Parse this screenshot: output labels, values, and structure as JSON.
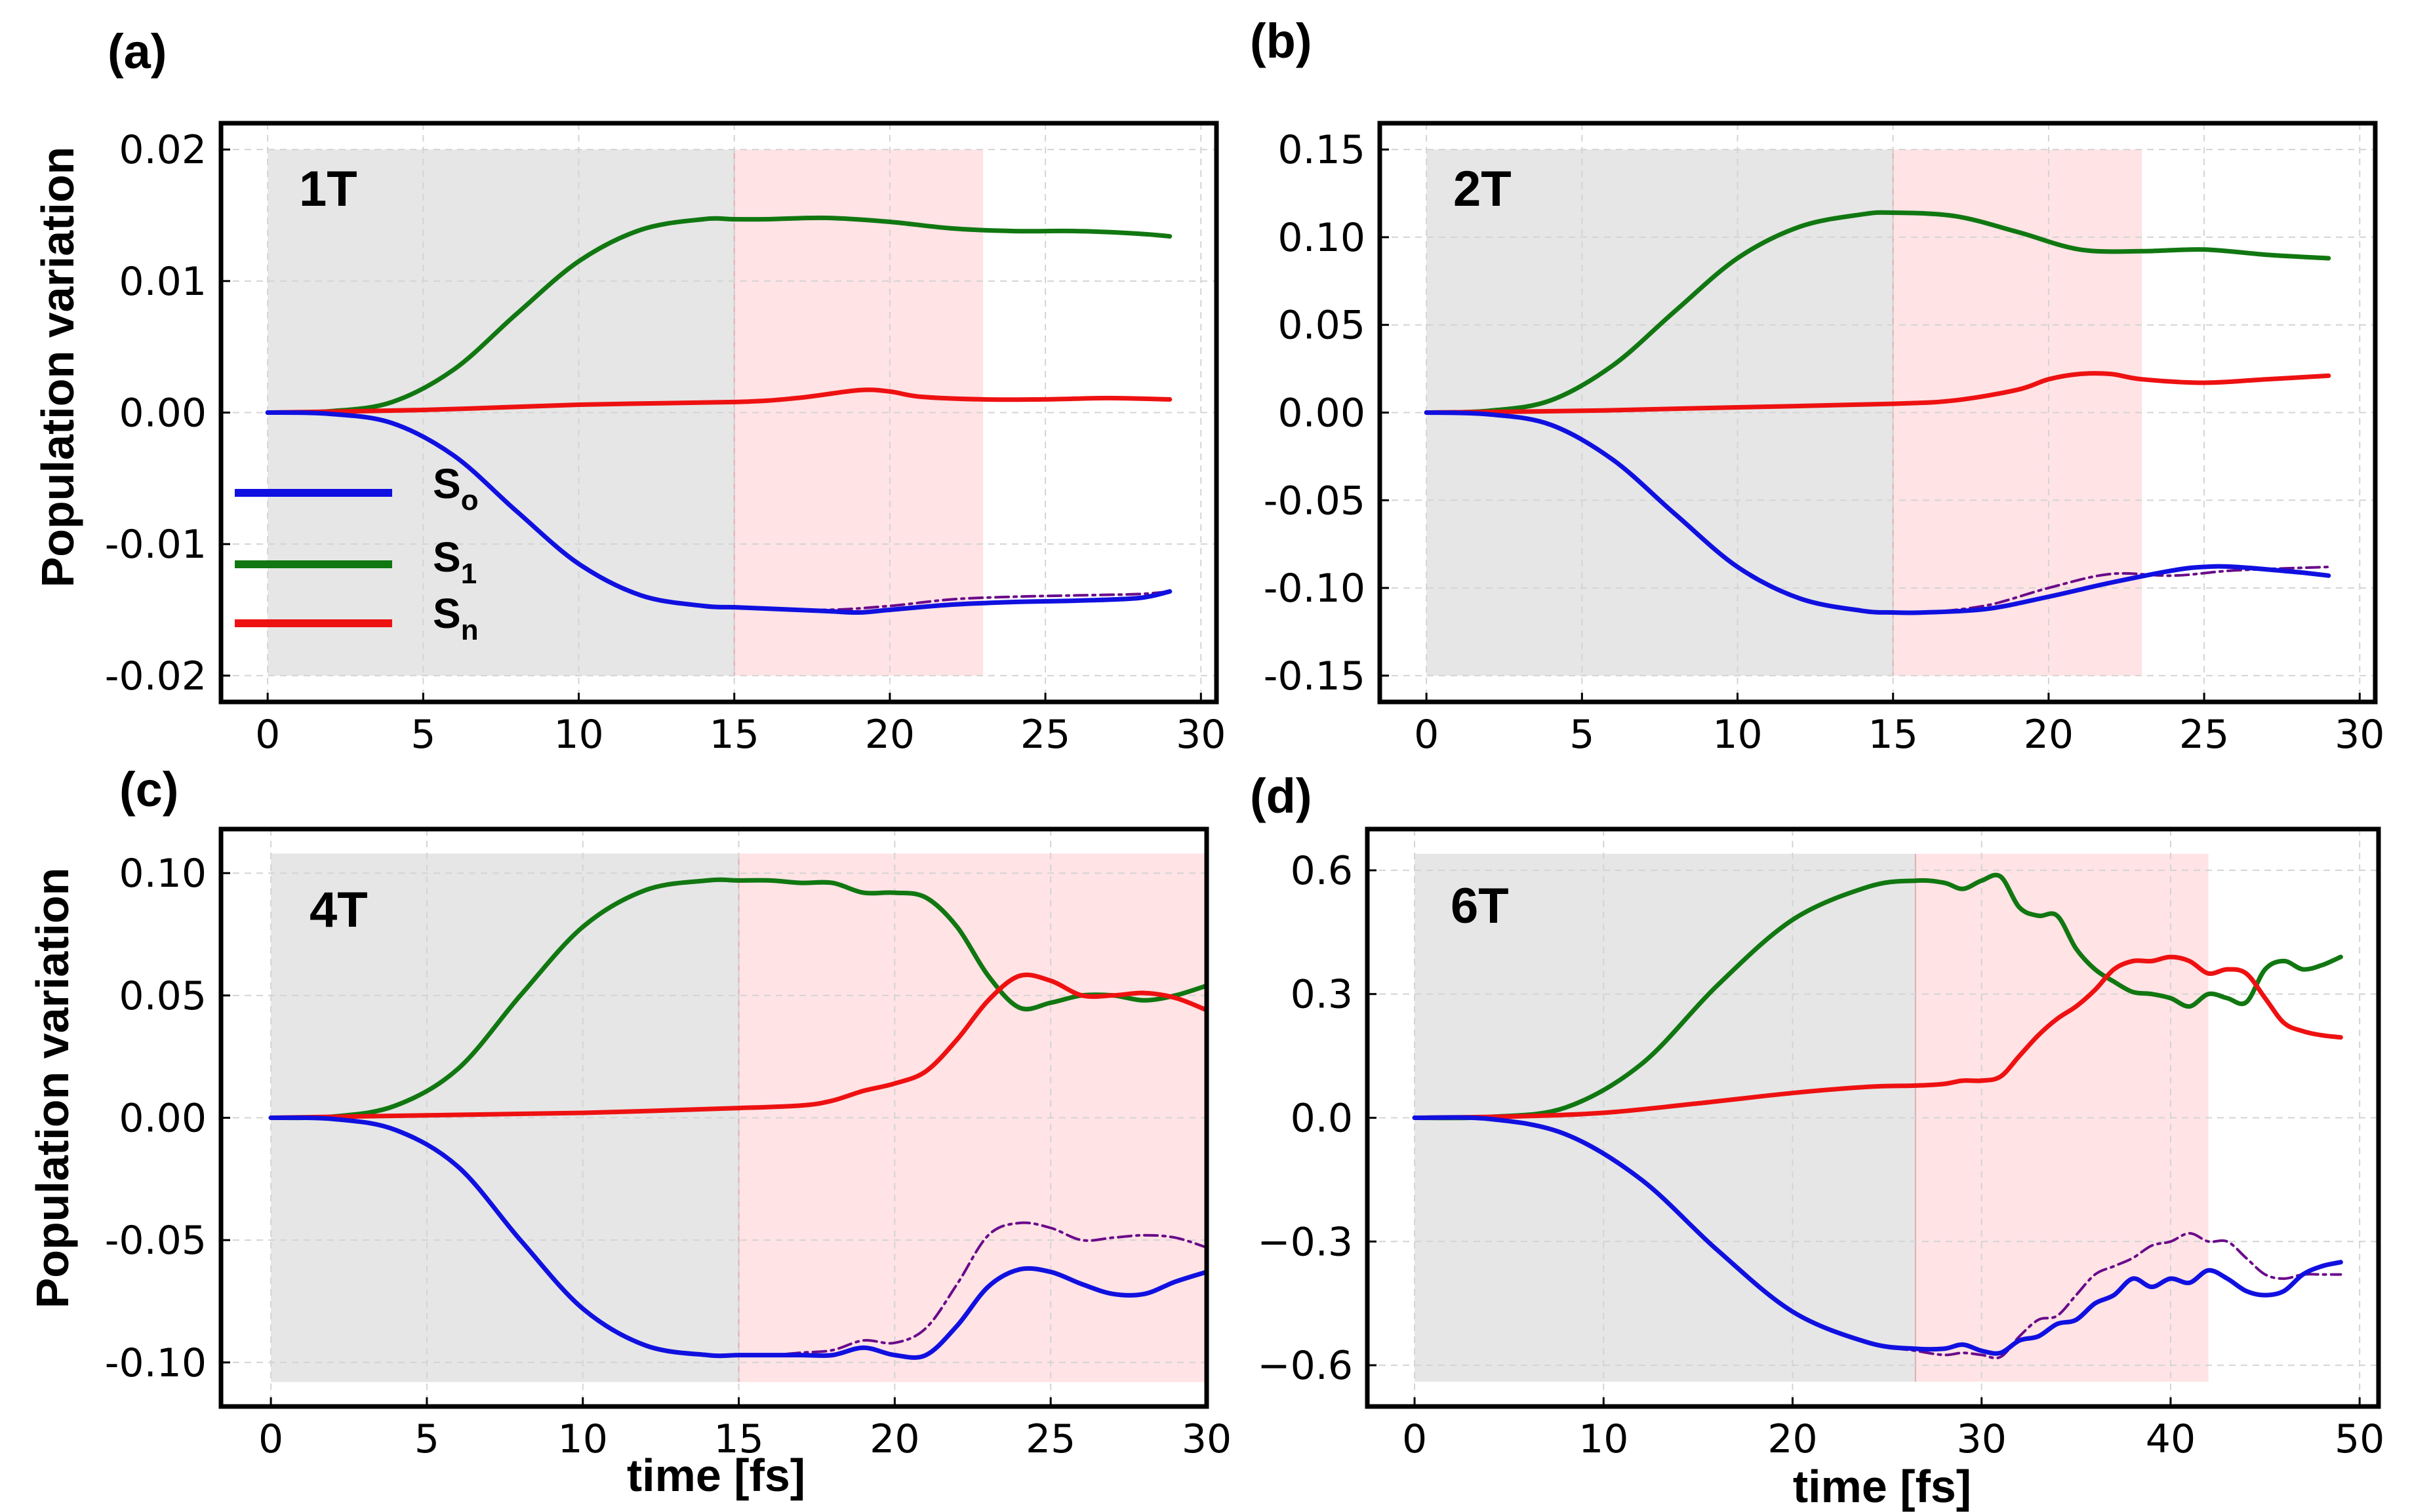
{
  "colors": {
    "S0": "#1010e0",
    "S1": "#117711",
    "Sn": "#ee1111",
    "S0_ref": "#6a0a8a",
    "shade_gray": "#e6e6e6",
    "shade_pink": "#ffe3e5",
    "grid": "#d4d4d4"
  },
  "legend": {
    "items": [
      {
        "key": "S0",
        "main": "S",
        "sub": "o"
      },
      {
        "key": "S1",
        "main": "S",
        "sub": "1"
      },
      {
        "key": "Sn",
        "main": "S",
        "sub": "n"
      }
    ]
  },
  "chart_data": [
    {
      "type": "line",
      "panel_label": "(a)",
      "inset_label": "1T",
      "ylabel": "Population variation",
      "xlabel": "",
      "xlim": [
        -1.5,
        30.5
      ],
      "ylim": [
        -0.022,
        0.022
      ],
      "xticks": [
        0,
        5,
        10,
        15,
        20,
        25,
        30
      ],
      "xtick_labels": [
        "0",
        "5",
        "10",
        "15",
        "20",
        "25",
        "30"
      ],
      "yticks": [
        -0.02,
        -0.01,
        0.0,
        0.01,
        0.02
      ],
      "ytick_labels": [
        "-0.02",
        "-0.01",
        "0.00",
        "0.01",
        "0.02"
      ],
      "shade_gray": [
        0,
        15
      ],
      "shade_pink": [
        15,
        23
      ],
      "shade_y": [
        -0.02,
        0.02
      ],
      "series": [
        {
          "name": "S1",
          "x": [
            0,
            2,
            4,
            6,
            8,
            10,
            12,
            14,
            15,
            16,
            18,
            20,
            22,
            24,
            26,
            28,
            29
          ],
          "y": [
            0,
            0.0001,
            0.0008,
            0.0033,
            0.0075,
            0.0115,
            0.0139,
            0.0147,
            0.0147,
            0.0147,
            0.0148,
            0.0145,
            0.014,
            0.0138,
            0.0138,
            0.0136,
            0.0134
          ]
        },
        {
          "name": "Sn",
          "x": [
            0,
            5,
            10,
            15,
            17,
            19,
            20,
            21,
            23,
            25,
            27,
            29
          ],
          "y": [
            0,
            0.0002,
            0.0006,
            0.0008,
            0.0011,
            0.0017,
            0.0016,
            0.0012,
            0.001,
            0.001,
            0.0011,
            0.001
          ]
        },
        {
          "name": "S0_ref",
          "x": [
            0,
            2,
            4,
            6,
            8,
            10,
            12,
            14,
            15,
            16,
            18,
            20,
            22,
            24,
            26,
            28,
            29
          ],
          "y": [
            0,
            -0.0001,
            -0.0008,
            -0.0033,
            -0.0075,
            -0.0115,
            -0.0139,
            -0.0147,
            -0.0148,
            -0.0149,
            -0.015,
            -0.0147,
            -0.0142,
            -0.014,
            -0.0139,
            -0.0138,
            -0.0136
          ]
        },
        {
          "name": "S0",
          "x": [
            0,
            2,
            4,
            6,
            8,
            10,
            12,
            14,
            15,
            16,
            18,
            19,
            20,
            22,
            24,
            26,
            28,
            29
          ],
          "y": [
            0,
            -0.0001,
            -0.0008,
            -0.0033,
            -0.0075,
            -0.0115,
            -0.0139,
            -0.0147,
            -0.0148,
            -0.0149,
            -0.0151,
            -0.0152,
            -0.015,
            -0.0146,
            -0.0144,
            -0.0143,
            -0.0141,
            -0.0136
          ]
        }
      ]
    },
    {
      "type": "line",
      "panel_label": "(b)",
      "inset_label": "2T",
      "ylabel": "",
      "xlabel": "",
      "xlim": [
        -1.5,
        30.5
      ],
      "ylim": [
        -0.165,
        0.165
      ],
      "xticks": [
        0,
        5,
        10,
        15,
        20,
        25,
        30
      ],
      "xtick_labels": [
        "0",
        "5",
        "10",
        "15",
        "20",
        "25",
        "30"
      ],
      "yticks": [
        -0.15,
        -0.1,
        -0.05,
        0.0,
        0.05,
        0.1,
        0.15
      ],
      "ytick_labels": [
        "-0.15",
        "-0.10",
        "-0.05",
        "0.00",
        "0.05",
        "0.10",
        "0.15"
      ],
      "shade_gray": [
        0,
        15
      ],
      "shade_pink": [
        15,
        23
      ],
      "shade_y": [
        -0.15,
        0.15
      ],
      "series": [
        {
          "name": "S1",
          "x": [
            0,
            2,
            4,
            6,
            8,
            10,
            12,
            14,
            15,
            17,
            19,
            21,
            23,
            25,
            27,
            29
          ],
          "y": [
            0,
            0.001,
            0.007,
            0.027,
            0.058,
            0.088,
            0.106,
            0.113,
            0.114,
            0.112,
            0.103,
            0.093,
            0.092,
            0.093,
            0.09,
            0.088
          ]
        },
        {
          "name": "Sn",
          "x": [
            0,
            5,
            10,
            15,
            17,
            19,
            20,
            21,
            22,
            23,
            25,
            27,
            29
          ],
          "y": [
            0,
            0.001,
            0.003,
            0.005,
            0.007,
            0.013,
            0.019,
            0.022,
            0.022,
            0.019,
            0.017,
            0.019,
            0.021
          ]
        },
        {
          "name": "S0_ref",
          "x": [
            0,
            2,
            4,
            6,
            8,
            10,
            12,
            14,
            15,
            16,
            18,
            20,
            22,
            24,
            26,
            29
          ],
          "y": [
            0,
            -0.001,
            -0.007,
            -0.027,
            -0.058,
            -0.088,
            -0.106,
            -0.113,
            -0.114,
            -0.114,
            -0.11,
            -0.1,
            -0.092,
            -0.093,
            -0.09,
            -0.088
          ]
        },
        {
          "name": "S0",
          "x": [
            0,
            2,
            4,
            6,
            8,
            10,
            12,
            14,
            15,
            16,
            18,
            20,
            22,
            24,
            25,
            26,
            28,
            29
          ],
          "y": [
            0,
            -0.001,
            -0.007,
            -0.027,
            -0.058,
            -0.088,
            -0.106,
            -0.113,
            -0.114,
            -0.114,
            -0.112,
            -0.105,
            -0.097,
            -0.09,
            -0.088,
            -0.088,
            -0.091,
            -0.093
          ]
        }
      ]
    },
    {
      "type": "line",
      "panel_label": "(c)",
      "inset_label": "4T",
      "ylabel": "Population variation",
      "xlabel": "time [fs]",
      "xlim": [
        -1.6,
        30.0
      ],
      "ylim": [
        -0.118,
        0.118
      ],
      "xticks": [
        0,
        5,
        10,
        15,
        20,
        25,
        30
      ],
      "xtick_labels": [
        "0",
        "5",
        "10",
        "15",
        "20",
        "25",
        "30"
      ],
      "yticks": [
        -0.1,
        -0.05,
        0.0,
        0.05,
        0.1
      ],
      "ytick_labels": [
        "-0.10",
        "-0.05",
        "0.00",
        "0.05",
        "0.10"
      ],
      "shade_gray": [
        0,
        15
      ],
      "shade_pink": [
        15,
        30
      ],
      "shade_y": [
        -0.108,
        0.108
      ],
      "series": [
        {
          "name": "S1",
          "x": [
            0,
            2,
            4,
            6,
            8,
            10,
            12,
            14,
            15,
            16,
            17,
            18,
            19,
            20,
            21,
            22,
            23,
            24,
            25,
            26,
            27,
            28,
            29,
            30
          ],
          "y": [
            0,
            0.0005,
            0.005,
            0.02,
            0.05,
            0.078,
            0.093,
            0.097,
            0.097,
            0.097,
            0.096,
            0.096,
            0.092,
            0.092,
            0.09,
            0.078,
            0.058,
            0.045,
            0.047,
            0.05,
            0.05,
            0.048,
            0.05,
            0.054
          ]
        },
        {
          "name": "Sn",
          "x": [
            0,
            5,
            10,
            15,
            17,
            18,
            19,
            20,
            21,
            22,
            23,
            24,
            25,
            26,
            27,
            28,
            29,
            30
          ],
          "y": [
            0,
            0.001,
            0.002,
            0.004,
            0.005,
            0.007,
            0.011,
            0.014,
            0.019,
            0.032,
            0.048,
            0.058,
            0.056,
            0.05,
            0.05,
            0.051,
            0.049,
            0.044
          ]
        },
        {
          "name": "S0_ref",
          "x": [
            0,
            2,
            4,
            6,
            8,
            10,
            12,
            14,
            15,
            16,
            17,
            18,
            19,
            20,
            21,
            22,
            23,
            24,
            25,
            26,
            27,
            28,
            29,
            30
          ],
          "y": [
            0,
            -0.0005,
            -0.005,
            -0.02,
            -0.05,
            -0.078,
            -0.093,
            -0.097,
            -0.097,
            -0.097,
            -0.096,
            -0.095,
            -0.091,
            -0.092,
            -0.086,
            -0.068,
            -0.048,
            -0.043,
            -0.045,
            -0.05,
            -0.049,
            -0.048,
            -0.049,
            -0.053
          ]
        },
        {
          "name": "S0",
          "x": [
            0,
            2,
            4,
            6,
            8,
            10,
            12,
            14,
            15,
            16,
            17,
            18,
            19,
            20,
            21,
            22,
            23,
            24,
            25,
            26,
            27,
            28,
            29,
            30
          ],
          "y": [
            0,
            -0.0005,
            -0.005,
            -0.02,
            -0.05,
            -0.078,
            -0.093,
            -0.097,
            -0.097,
            -0.097,
            -0.097,
            -0.097,
            -0.094,
            -0.097,
            -0.097,
            -0.085,
            -0.069,
            -0.062,
            -0.063,
            -0.068,
            -0.072,
            -0.072,
            -0.067,
            -0.063
          ]
        }
      ]
    },
    {
      "type": "line",
      "panel_label": "(d)",
      "inset_label": "6T",
      "ylabel": "",
      "xlabel": "time [fs]",
      "xlim": [
        -2.5,
        51.0
      ],
      "ylim": [
        -0.7,
        0.7
      ],
      "xticks": [
        0,
        10,
        20,
        30,
        40,
        50
      ],
      "xtick_labels": [
        "0",
        "10",
        "20",
        "30",
        "40",
        "50"
      ],
      "yticks": [
        -0.6,
        -0.3,
        0.0,
        0.3,
        0.6
      ],
      "ytick_labels": [
        "−0.6",
        "−0.3",
        "0.0",
        "0.3",
        "0.6"
      ],
      "shade_gray": [
        0,
        26.5
      ],
      "shade_pink": [
        26.5,
        42
      ],
      "shade_y": [
        -0.64,
        0.64
      ],
      "series": [
        {
          "name": "S1",
          "x": [
            0,
            4,
            8,
            12,
            16,
            20,
            24,
            26.5,
            28,
            29,
            30,
            31,
            32,
            33,
            34,
            35,
            36,
            37,
            38,
            39,
            40,
            41,
            42,
            43,
            44,
            45,
            46,
            47,
            48,
            49
          ],
          "y": [
            0,
            0.002,
            0.025,
            0.13,
            0.32,
            0.48,
            0.56,
            0.575,
            0.57,
            0.555,
            0.575,
            0.585,
            0.51,
            0.49,
            0.49,
            0.41,
            0.36,
            0.33,
            0.305,
            0.3,
            0.29,
            0.27,
            0.3,
            0.29,
            0.28,
            0.36,
            0.38,
            0.36,
            0.37,
            0.39
          ]
        },
        {
          "name": "Sn",
          "x": [
            0,
            5,
            10,
            15,
            20,
            24,
            26.5,
            28,
            29,
            30,
            31,
            32,
            33,
            34,
            35,
            36,
            37,
            38,
            39,
            40,
            41,
            42,
            43,
            44,
            45,
            46,
            47,
            48,
            49
          ],
          "y": [
            0,
            0.003,
            0.012,
            0.035,
            0.06,
            0.075,
            0.078,
            0.082,
            0.09,
            0.09,
            0.1,
            0.15,
            0.2,
            0.24,
            0.27,
            0.31,
            0.36,
            0.38,
            0.38,
            0.39,
            0.38,
            0.35,
            0.36,
            0.35,
            0.29,
            0.23,
            0.21,
            0.2,
            0.195
          ]
        },
        {
          "name": "S0_ref",
          "x": [
            0,
            4,
            8,
            12,
            16,
            20,
            24,
            26.5,
            28,
            29,
            30,
            31,
            32,
            33,
            34,
            35,
            36,
            37,
            38,
            39,
            40,
            41,
            42,
            43,
            44,
            45,
            46,
            47,
            48,
            49
          ],
          "y": [
            0,
            -0.003,
            -0.04,
            -0.15,
            -0.32,
            -0.47,
            -0.545,
            -0.565,
            -0.575,
            -0.57,
            -0.575,
            -0.58,
            -0.53,
            -0.49,
            -0.48,
            -0.43,
            -0.38,
            -0.36,
            -0.34,
            -0.31,
            -0.3,
            -0.28,
            -0.3,
            -0.3,
            -0.34,
            -0.38,
            -0.39,
            -0.38,
            -0.38,
            -0.38
          ]
        },
        {
          "name": "S0",
          "x": [
            0,
            4,
            8,
            12,
            16,
            20,
            24,
            26.5,
            28,
            29,
            30,
            31,
            32,
            33,
            34,
            35,
            36,
            37,
            38,
            39,
            40,
            41,
            42,
            43,
            44,
            45,
            46,
            47,
            48,
            49
          ],
          "y": [
            0,
            -0.003,
            -0.04,
            -0.15,
            -0.32,
            -0.47,
            -0.545,
            -0.56,
            -0.56,
            -0.55,
            -0.565,
            -0.57,
            -0.54,
            -0.53,
            -0.5,
            -0.49,
            -0.45,
            -0.43,
            -0.39,
            -0.41,
            -0.39,
            -0.4,
            -0.37,
            -0.39,
            -0.42,
            -0.43,
            -0.42,
            -0.38,
            -0.36,
            -0.35
          ]
        }
      ]
    }
  ]
}
